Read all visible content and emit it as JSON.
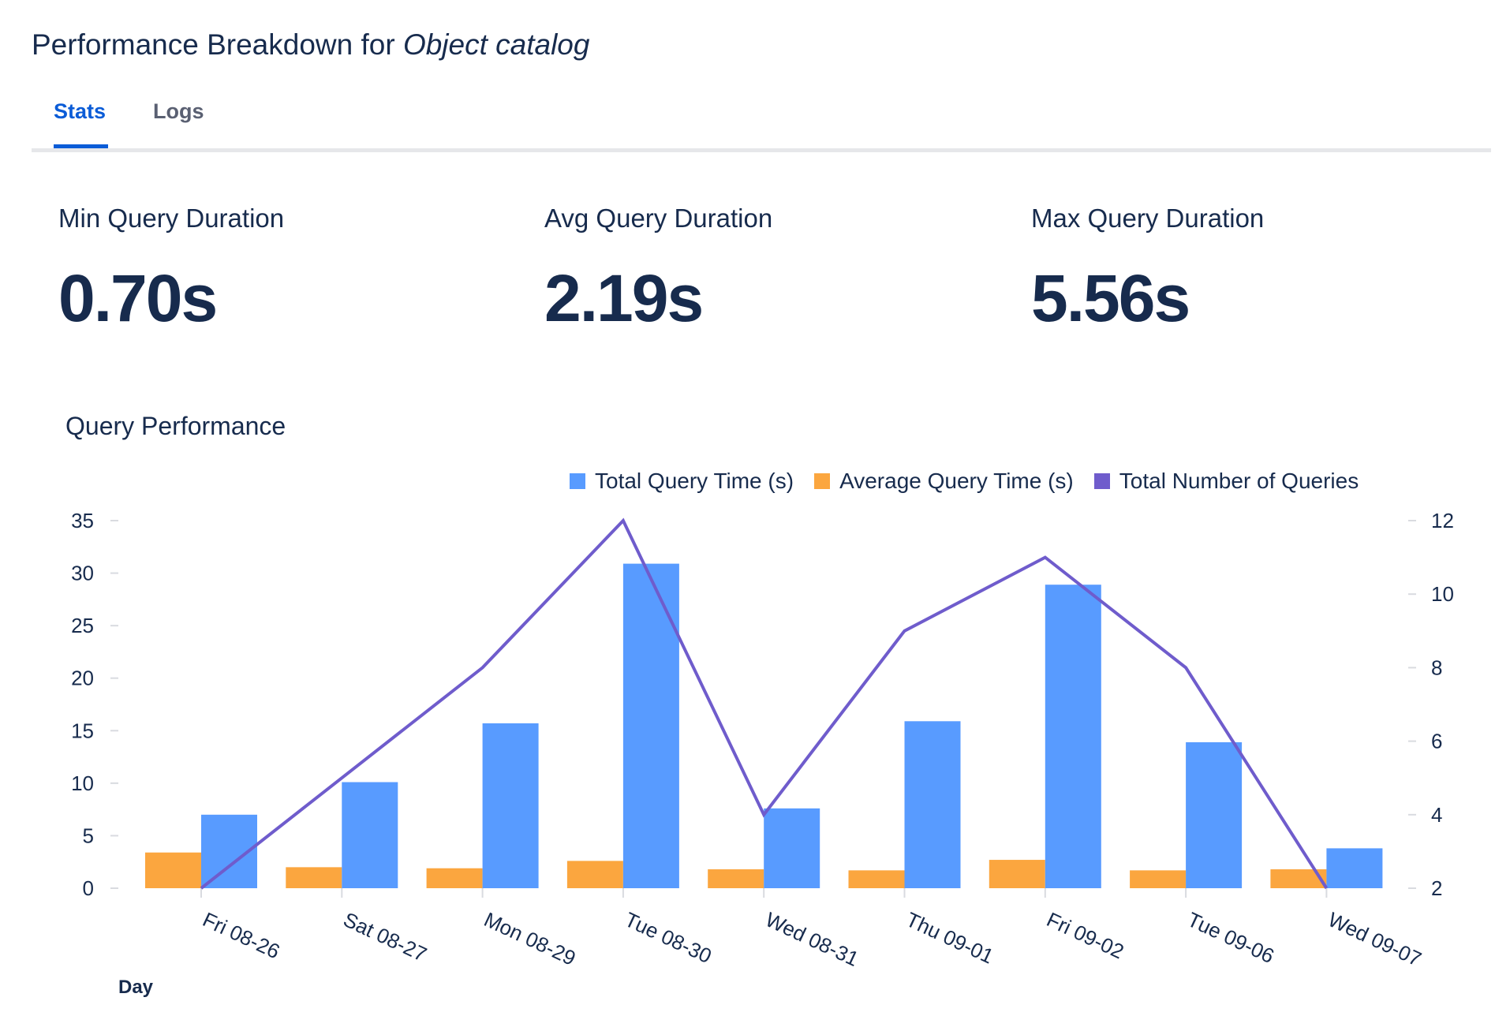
{
  "header": {
    "title_prefix": "Performance Breakdown for ",
    "title_object": "Object catalog"
  },
  "tabs": [
    {
      "label": "Stats",
      "active": true
    },
    {
      "label": "Logs",
      "active": false
    }
  ],
  "stats": [
    {
      "label": "Min Query Duration",
      "value": "0.70s"
    },
    {
      "label": "Avg Query Duration",
      "value": "2.19s"
    },
    {
      "label": "Max Query Duration",
      "value": "5.56s"
    }
  ],
  "chart_data": {
    "type": "bar",
    "title": "Query Performance",
    "xlabel": "Day",
    "categories": [
      "Fri 08-26",
      "Sat 08-27",
      "Mon 08-29",
      "Tue 08-30",
      "Wed 08-31",
      "Thu 09-01",
      "Fri 09-02",
      "Tue 09-06",
      "Wed 09-07"
    ],
    "series": [
      {
        "name": "Total Query Time (s)",
        "type": "bar",
        "axis": "left",
        "color": "#589bff",
        "values": [
          7.0,
          10.1,
          15.7,
          30.9,
          7.6,
          15.9,
          28.9,
          13.9,
          3.8
        ]
      },
      {
        "name": "Average Query Time (s)",
        "type": "bar",
        "axis": "left",
        "color": "#fba63f",
        "values": [
          3.4,
          2.0,
          1.9,
          2.6,
          1.8,
          1.7,
          2.7,
          1.7,
          1.8
        ]
      },
      {
        "name": "Total Number of Queries",
        "type": "line",
        "axis": "right",
        "color": "#6f5ccc",
        "values": [
          2,
          5,
          8,
          12,
          4,
          9,
          11,
          8,
          2
        ]
      }
    ],
    "y_left": {
      "range": [
        0,
        35
      ],
      "ticks": [
        0,
        5,
        10,
        15,
        20,
        25,
        30,
        35
      ]
    },
    "y_right": {
      "range": [
        2,
        12
      ],
      "ticks": [
        2,
        4,
        6,
        8,
        10,
        12
      ]
    },
    "legend": "top-right",
    "grid": false
  }
}
